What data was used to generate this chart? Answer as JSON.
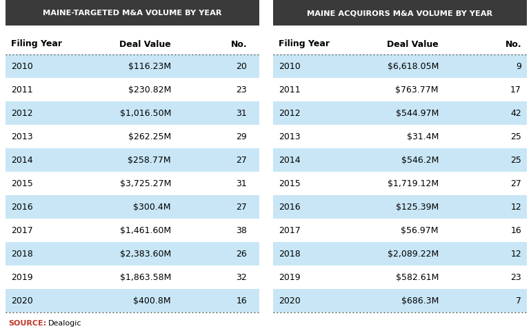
{
  "left_title": "MAINE-TARGETED M&A VOLUME BY YEAR",
  "right_title": "MAINE ACQUIRORS M&A VOLUME BY YEAR",
  "left_headers": [
    "Filing Year",
    "Deal Value",
    "No."
  ],
  "right_headers": [
    "Filing Year",
    "Deal Value",
    "No."
  ],
  "left_rows": [
    [
      "2010",
      "$116.23M",
      "20"
    ],
    [
      "2011",
      "$230.82M",
      "23"
    ],
    [
      "2012",
      "$1,016.50M",
      "31"
    ],
    [
      "2013",
      "$262.25M",
      "29"
    ],
    [
      "2014",
      "$258.77M",
      "27"
    ],
    [
      "2015",
      "$3,725.27M",
      "31"
    ],
    [
      "2016",
      "$300.4M",
      "27"
    ],
    [
      "2017",
      "$1,461.60M",
      "38"
    ],
    [
      "2018",
      "$2,383.60M",
      "26"
    ],
    [
      "2019",
      "$1,863.58M",
      "32"
    ],
    [
      "2020",
      "$400.8M",
      "16"
    ]
  ],
  "right_rows": [
    [
      "2010",
      "$6,618.05M",
      "9"
    ],
    [
      "2011",
      "$763.77M",
      "17"
    ],
    [
      "2012",
      "$544.97M",
      "42"
    ],
    [
      "2013",
      "$31.4M",
      "25"
    ],
    [
      "2014",
      "$546.2M",
      "25"
    ],
    [
      "2015",
      "$1,719.12M",
      "27"
    ],
    [
      "2016",
      "$125.39M",
      "12"
    ],
    [
      "2017",
      "$56.97M",
      "16"
    ],
    [
      "2018",
      "$2,089.22M",
      "12"
    ],
    [
      "2019",
      "$582.61M",
      "23"
    ],
    [
      "2020",
      "$686.3M",
      "7"
    ]
  ],
  "title_bg_color": "#3a3a3a",
  "title_text_color": "#ffffff",
  "header_text_color": "#000000",
  "row_alt_color": "#c8e6f5",
  "row_white_color": "#ffffff",
  "source_label_color": "#c0392b",
  "source_value_color": "#000000",
  "dotted_line_color": "#444444",
  "bg_color": "#ffffff",
  "gap_color": "#ffffff"
}
